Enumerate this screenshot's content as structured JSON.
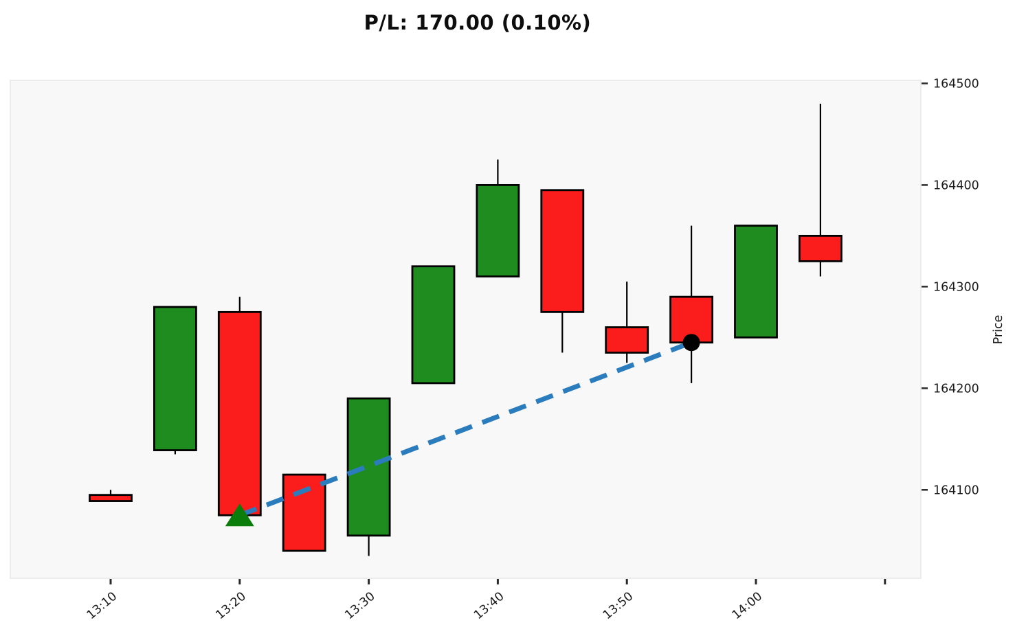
{
  "title": "P/L: 170.00 (0.10%)",
  "chart_data": {
    "type": "candlestick",
    "title": "P/L: 170.00 (0.10%)",
    "ylabel": "Price",
    "xlabel": "",
    "grid": false,
    "y_axis_side": "right",
    "ylim": [
      164013,
      164503
    ],
    "y_ticks": [
      164500,
      164400,
      164300,
      164200,
      164100
    ],
    "x_tick_labels": [
      "13:10",
      "13:20",
      "13:30",
      "13:40",
      "13:50",
      "14:00",
      ""
    ],
    "candles": [
      {
        "time": "13:10",
        "open": 164095,
        "high": 164100,
        "low": 164089,
        "close": 164089
      },
      {
        "time": "13:15",
        "open": 164139,
        "high": 164280,
        "low": 164135,
        "close": 164280
      },
      {
        "time": "13:20",
        "open": 164275,
        "high": 164290,
        "low": 164075,
        "close": 164075
      },
      {
        "time": "13:25",
        "open": 164115,
        "high": 164115,
        "low": 164040,
        "close": 164040
      },
      {
        "time": "13:30",
        "open": 164055,
        "high": 164190,
        "low": 164035,
        "close": 164190
      },
      {
        "time": "13:35",
        "open": 164205,
        "high": 164320,
        "low": 164205,
        "close": 164320
      },
      {
        "time": "13:40",
        "open": 164310,
        "high": 164425,
        "low": 164310,
        "close": 164400
      },
      {
        "time": "13:45",
        "open": 164395,
        "high": 164395,
        "low": 164235,
        "close": 164275
      },
      {
        "time": "13:50",
        "open": 164260,
        "high": 164305,
        "low": 164225,
        "close": 164235
      },
      {
        "time": "13:55",
        "open": 164290,
        "high": 164360,
        "low": 164205,
        "close": 164245
      },
      {
        "time": "14:00",
        "open": 164250,
        "high": 164360,
        "low": 164250,
        "close": 164360
      },
      {
        "time": "14:05",
        "open": 164350,
        "high": 164480,
        "low": 164310,
        "close": 164325
      }
    ],
    "trade": {
      "entry": {
        "time": "13:20",
        "price": 164075,
        "marker": "triangle-up"
      },
      "exit": {
        "time": "13:55",
        "price": 164245,
        "marker": "circle"
      },
      "pl_points": 170.0,
      "pl_percent": 0.1
    },
    "colors": {
      "up": "#1e8c1e",
      "down": "#fb1c1c",
      "edge": "#000000",
      "wick": "#000000",
      "trade_line": "#2b7cbd",
      "entry_marker": "#0b7d0b",
      "exit_marker": "#000000",
      "plot_bg": "#f8f8f8",
      "plot_border": "#ececec",
      "tick_text": "#1a1a1a"
    }
  }
}
